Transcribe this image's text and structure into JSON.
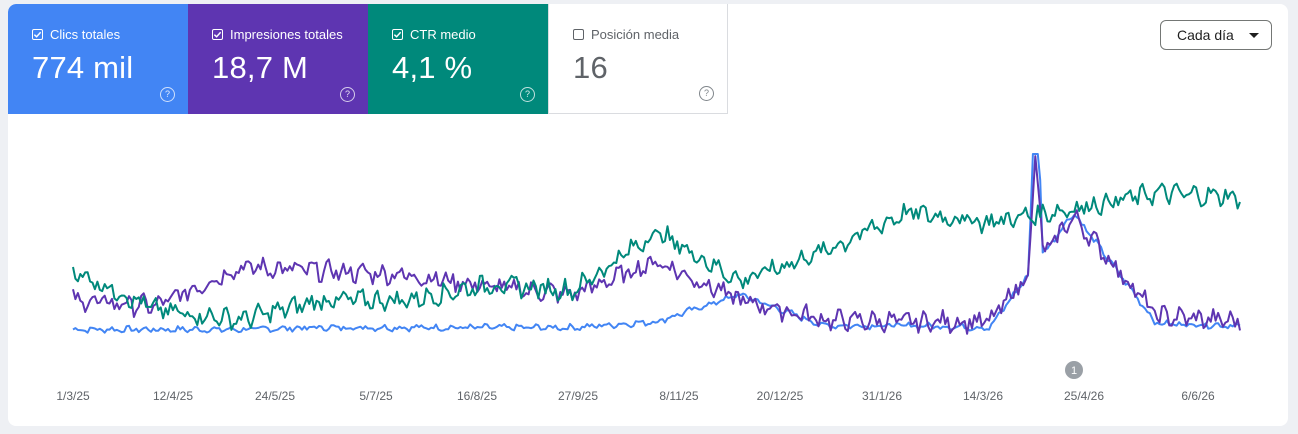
{
  "metrics": [
    {
      "label": "Clics totales",
      "value": "774 mil",
      "checked": true,
      "color": "#4285f4"
    },
    {
      "label": "Impresiones totales",
      "value": "18,7 M",
      "checked": true,
      "color": "#5e35b1"
    },
    {
      "label": "CTR medio",
      "value": "4,1 %",
      "checked": true,
      "color": "#00897b"
    },
    {
      "label": "Posición media",
      "value": "16",
      "checked": false,
      "color": "#ffffff"
    }
  ],
  "period_select": {
    "label": "Cada día"
  },
  "help_glyph": "?",
  "annotation": {
    "label": "1"
  },
  "chart_data": {
    "type": "line",
    "x_tick_labels": [
      "1/3/25",
      "12/4/25",
      "24/5/25",
      "5/7/25",
      "16/8/25",
      "27/9/25",
      "8/11/25",
      "20/12/25",
      "31/1/26",
      "14/3/26",
      "25/4/26",
      "6/6/26"
    ],
    "x_range": [
      "2025-03-01",
      "2026-07-01"
    ],
    "y_axis": "hidden (relative scale per series)",
    "series": [
      {
        "name": "Clics totales",
        "color": "#4285f4",
        "approx_relative_level": [
          10,
          10,
          10,
          11,
          11,
          11,
          11,
          14,
          28,
          12,
          12,
          11,
          70,
          13,
          12
        ]
      },
      {
        "name": "Impresiones totales",
        "color": "#5e35b1",
        "approx_relative_level": [
          25,
          22,
          42,
          40,
          38,
          32,
          28,
          45,
          25,
          15,
          14,
          14,
          68,
          17,
          14
        ]
      },
      {
        "name": "CTR medio",
        "color": "#00897b",
        "approx_relative_level": [
          40,
          20,
          15,
          25,
          25,
          33,
          30,
          60,
          35,
          50,
          70,
          65,
          72,
          80,
          78
        ]
      }
    ]
  }
}
